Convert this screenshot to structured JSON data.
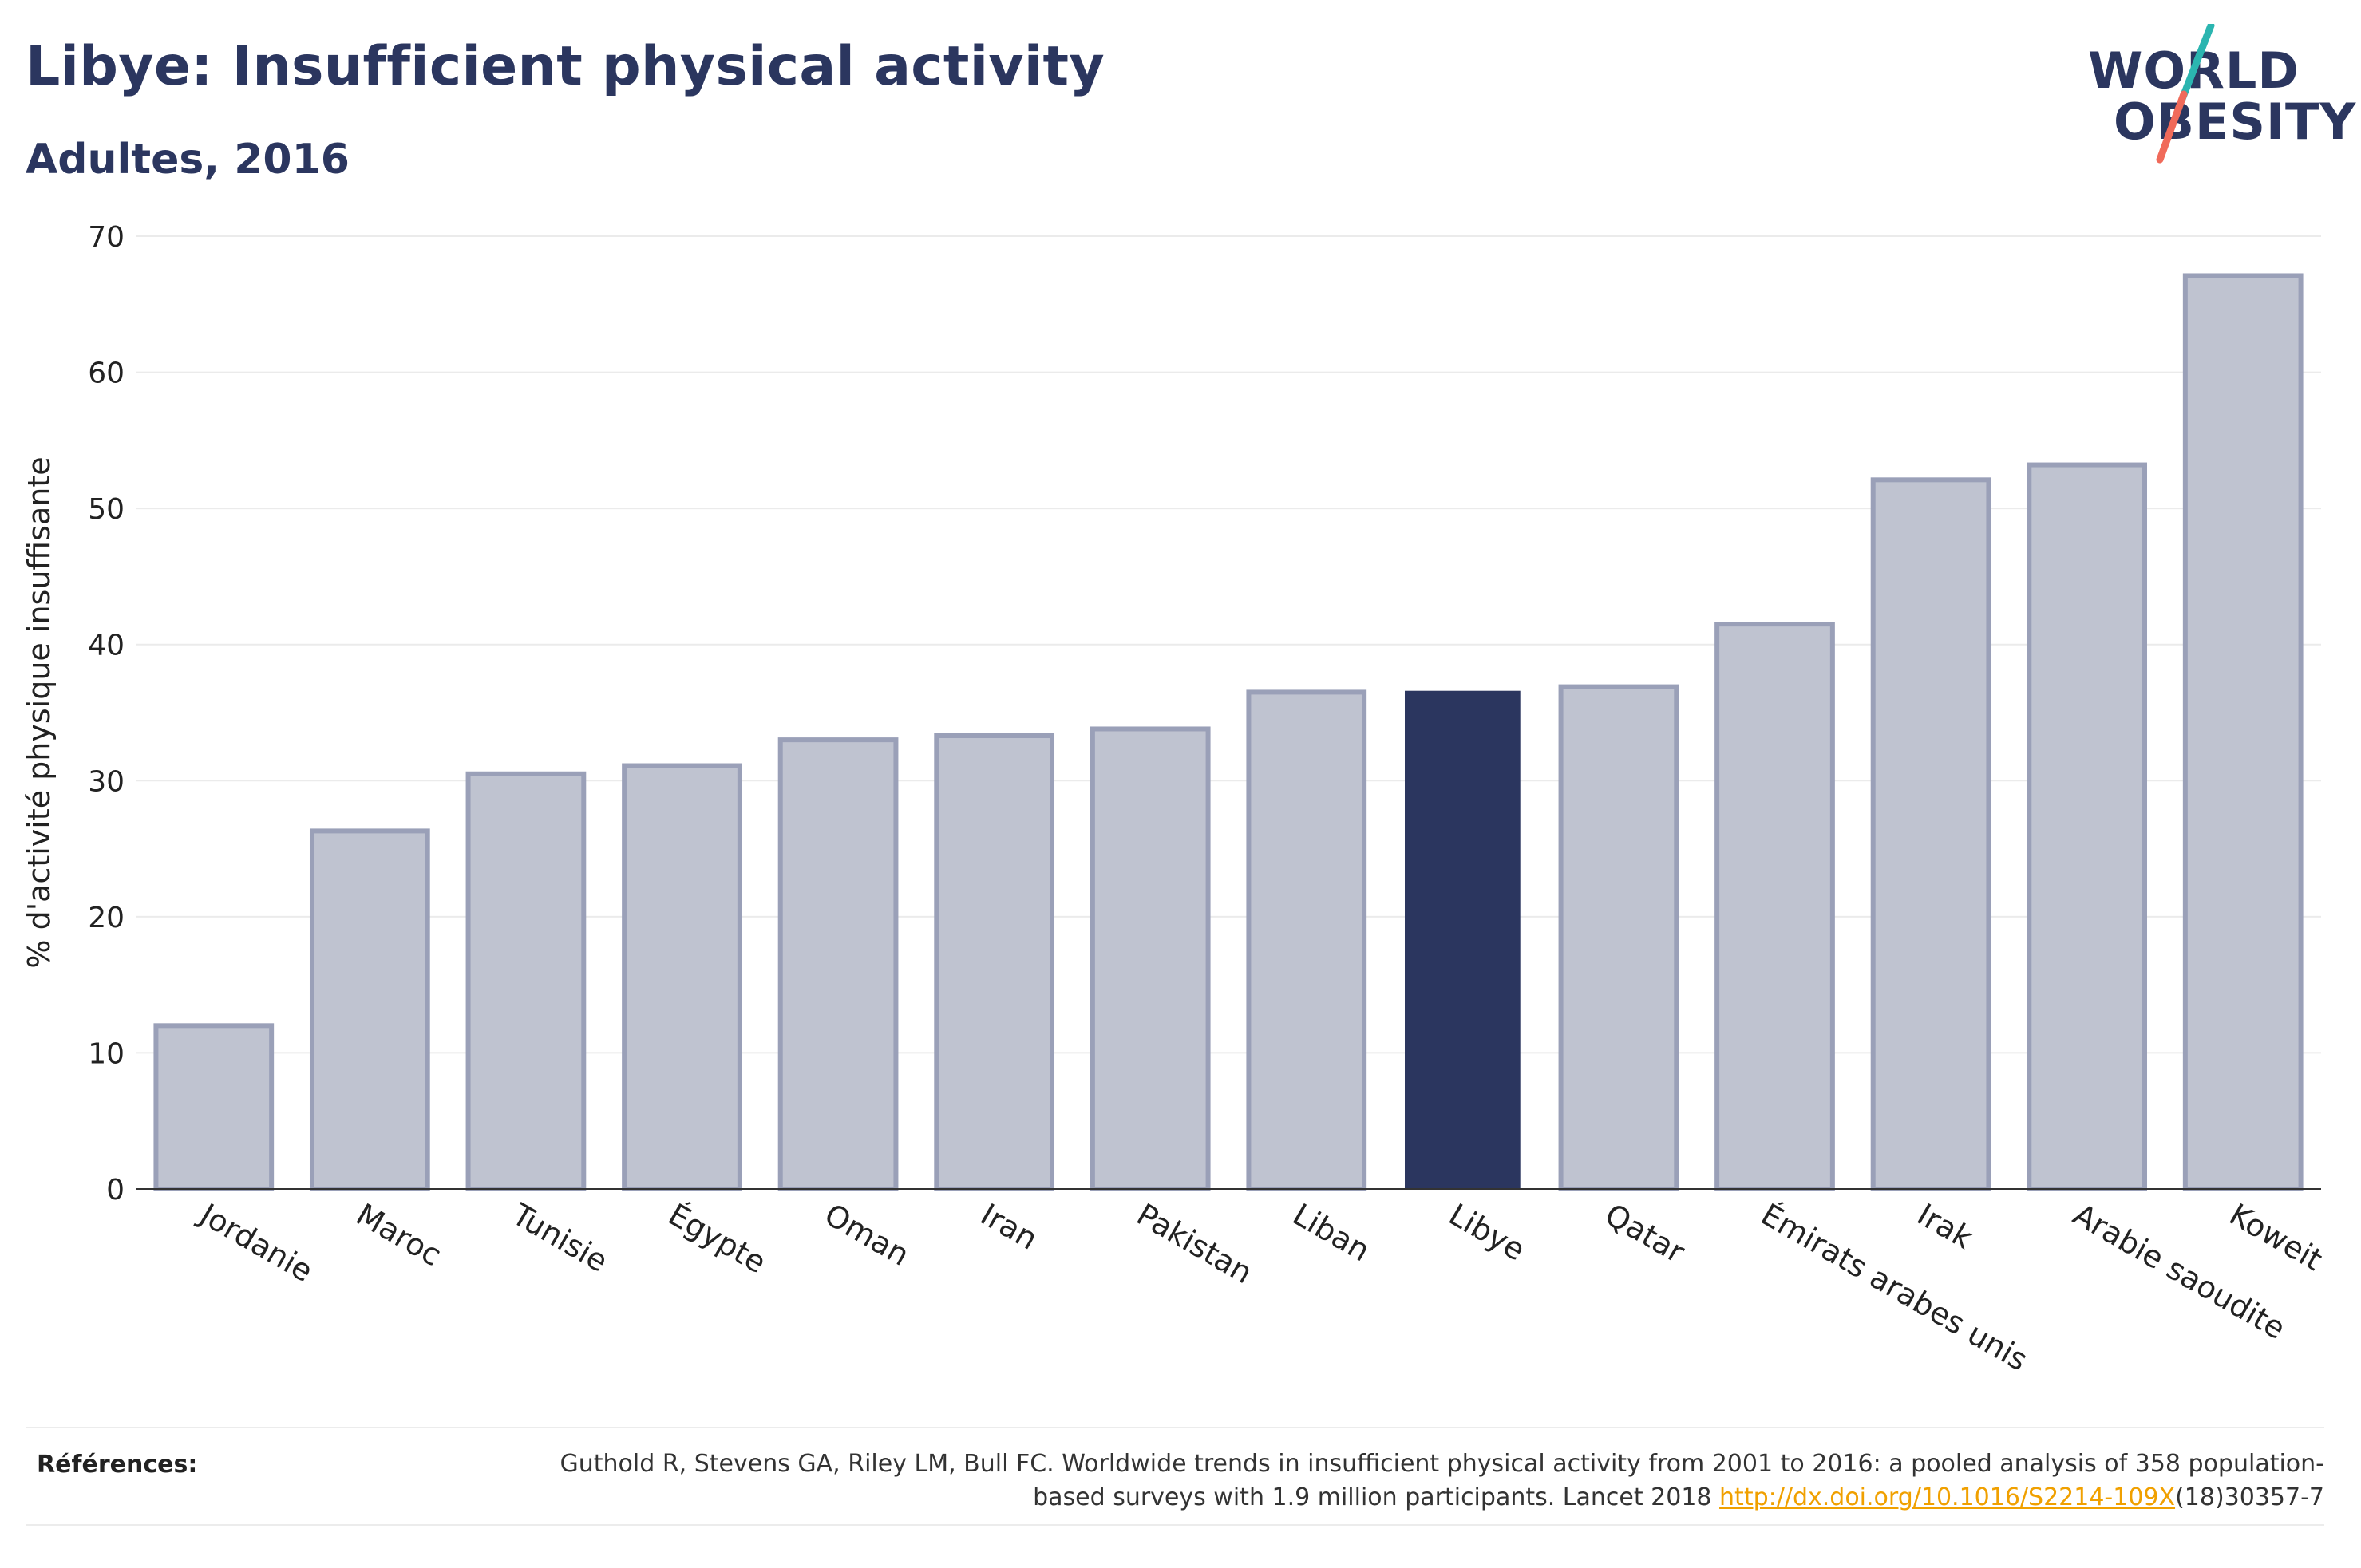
{
  "title": "Libye: Insufficient physical activity",
  "subtitle": "Adultes, 2016",
  "logo": {
    "line1": "WORLD",
    "line2": "OBESITY",
    "accent_teal": "#2bb5b0",
    "accent_coral": "#f06a5a"
  },
  "colors": {
    "bar": "#bfc3d0",
    "bar_border": "#9aa0b8",
    "highlight": "#2b365f",
    "grid": "#ebebeb",
    "text": "#2b365f"
  },
  "chart_data": {
    "type": "bar",
    "categories": [
      "Jordanie",
      "Maroc",
      "Tunisie",
      "Égypte",
      "Oman",
      "Iran",
      "Pakistan",
      "Liban",
      "Libye",
      "Qatar",
      "Émirats arabes unis",
      "Irak",
      "Arabie saoudite",
      "Koweit"
    ],
    "values": [
      12.0,
      26.3,
      30.5,
      31.1,
      33.0,
      33.3,
      33.8,
      36.5,
      36.6,
      36.9,
      41.5,
      52.1,
      53.2,
      67.1
    ],
    "highlight": "Libye",
    "ylabel": "% d'activité physique insuffisante",
    "xlabel": "",
    "ylim": [
      0,
      70
    ],
    "yticks": [
      0,
      10,
      20,
      30,
      40,
      50,
      60,
      70
    ],
    "grid": true,
    "legend": "none"
  },
  "references": {
    "label": "Références:",
    "text_before": "Guthold R, Stevens GA, Riley LM, Bull FC. Worldwide trends in insufficient physical activity from 2001 to 2016: a pooled analysis of 358 population-based surveys with 1.9 million participants. Lancet 2018 ",
    "link": "http://dx.doi.org/10.1016/S2214-109X",
    "text_after": "(18)30357-7"
  }
}
